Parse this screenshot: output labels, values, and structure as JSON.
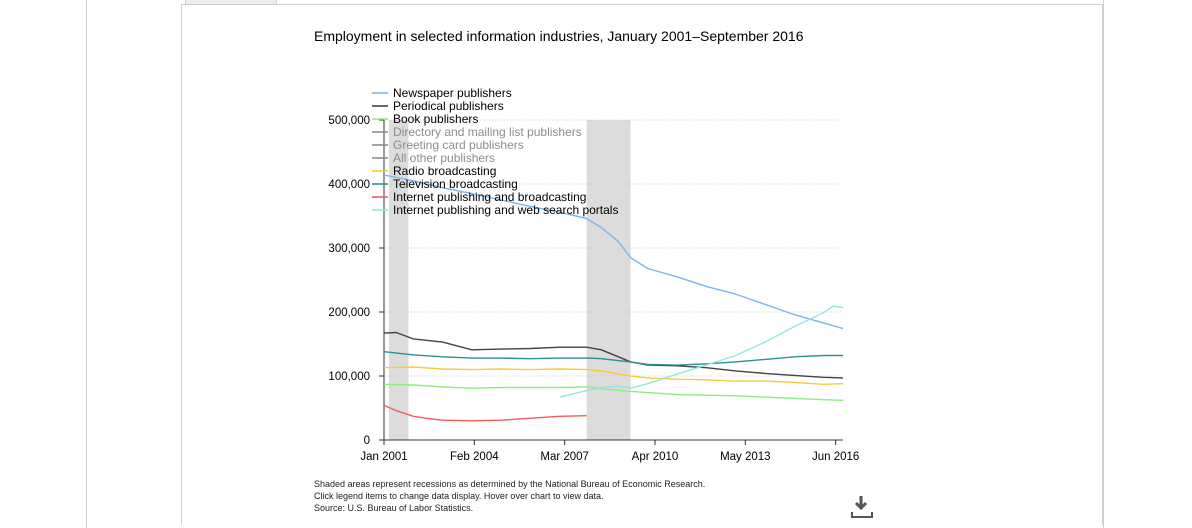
{
  "page": {
    "title": "Employment in selected information industries, January 2001–September 2016",
    "notes": [
      "Shaded areas represent recessions as determined by the National Bureau of Economic Research.",
      "Click legend items to change data display. Hover over chart to view data.",
      "Source: U.S. Bureau of Labor Statistics."
    ],
    "download_icon": "download-icon"
  },
  "chart_data": {
    "type": "line",
    "title": "Employment in selected information industries, January 2001–September 2016",
    "xlabel": "",
    "ylabel": "",
    "x_tick_labels": [
      "Jan 2001",
      "Feb 2004",
      "Mar 2007",
      "Apr 2010",
      "May 2013",
      "Jun 2016"
    ],
    "x_ticks": [
      "2001-01",
      "2004-02",
      "2007-03",
      "2010-04",
      "2013-05",
      "2016-06"
    ],
    "xlim": [
      "2001-01",
      "2016-09"
    ],
    "y_ticks": [
      0,
      100000,
      200000,
      300000,
      400000,
      500000
    ],
    "y_tick_labels": [
      "0",
      "100,000",
      "200,000",
      "300,000",
      "400,000",
      "500,000"
    ],
    "ylim": [
      0,
      500000
    ],
    "grid": "horizontal dotted",
    "legend_position": "top-left",
    "recessions": [
      [
        "2001-03",
        "2001-11"
      ],
      [
        "2007-12",
        "2009-06"
      ]
    ],
    "series": [
      {
        "name": "Newspaper publishers",
        "color": "#7cb5ec",
        "visible": true,
        "points": [
          [
            "2001-01",
            414000
          ],
          [
            "2002-01",
            405000
          ],
          [
            "2003-01",
            394000
          ],
          [
            "2004-01",
            385000
          ],
          [
            "2005-01",
            375000
          ],
          [
            "2006-01",
            365000
          ],
          [
            "2007-01",
            356000
          ],
          [
            "2007-12",
            346000
          ],
          [
            "2008-06",
            332000
          ],
          [
            "2009-01",
            310000
          ],
          [
            "2009-06",
            285000
          ],
          [
            "2010-01",
            268000
          ],
          [
            "2011-01",
            255000
          ],
          [
            "2012-01",
            240000
          ],
          [
            "2013-01",
            228000
          ],
          [
            "2014-01",
            212000
          ],
          [
            "2015-01",
            196000
          ],
          [
            "2016-01",
            183000
          ],
          [
            "2016-09",
            174000
          ]
        ]
      },
      {
        "name": "Periodical publishers",
        "color": "#434348",
        "visible": true,
        "points": [
          [
            "2001-01",
            167000
          ],
          [
            "2001-06",
            168000
          ],
          [
            "2002-01",
            158000
          ],
          [
            "2003-01",
            153000
          ],
          [
            "2003-06",
            148000
          ],
          [
            "2004-01",
            141000
          ],
          [
            "2005-01",
            142000
          ],
          [
            "2006-01",
            143000
          ],
          [
            "2007-01",
            145000
          ],
          [
            "2007-12",
            145000
          ],
          [
            "2008-06",
            141000
          ],
          [
            "2009-01",
            130000
          ],
          [
            "2009-06",
            122000
          ],
          [
            "2010-01",
            117000
          ],
          [
            "2011-01",
            116000
          ],
          [
            "2012-01",
            113000
          ],
          [
            "2013-01",
            108000
          ],
          [
            "2014-01",
            104000
          ],
          [
            "2015-01",
            101000
          ],
          [
            "2016-01",
            98000
          ],
          [
            "2016-09",
            97000
          ]
        ]
      },
      {
        "name": "Book publishers",
        "color": "#90ed7d",
        "visible": true,
        "points": [
          [
            "2001-01",
            87000
          ],
          [
            "2002-01",
            86000
          ],
          [
            "2003-01",
            83000
          ],
          [
            "2004-01",
            81000
          ],
          [
            "2005-01",
            82000
          ],
          [
            "2006-01",
            82000
          ],
          [
            "2007-01",
            82000
          ],
          [
            "2008-01",
            83000
          ],
          [
            "2008-06",
            80000
          ],
          [
            "2009-06",
            76000
          ],
          [
            "2010-01",
            74000
          ],
          [
            "2011-01",
            71000
          ],
          [
            "2012-01",
            70000
          ],
          [
            "2013-01",
            69000
          ],
          [
            "2014-01",
            67000
          ],
          [
            "2015-01",
            65000
          ],
          [
            "2016-01",
            63000
          ],
          [
            "2016-09",
            62000
          ]
        ]
      },
      {
        "name": "Directory and mailing list publishers",
        "color": "#8c8c8c",
        "visible": false,
        "points": []
      },
      {
        "name": "Greeting card publishers",
        "color": "#8c8c8c",
        "visible": false,
        "points": []
      },
      {
        "name": "All other publishers",
        "color": "#8c8c8c",
        "visible": false,
        "points": []
      },
      {
        "name": "Radio broadcasting",
        "color": "#f7cb3b",
        "visible": true,
        "points": [
          [
            "2001-01",
            113000
          ],
          [
            "2002-01",
            114000
          ],
          [
            "2003-01",
            111000
          ],
          [
            "2004-01",
            110000
          ],
          [
            "2005-01",
            111000
          ],
          [
            "2006-01",
            110000
          ],
          [
            "2007-01",
            111000
          ],
          [
            "2008-01",
            110000
          ],
          [
            "2008-06",
            108000
          ],
          [
            "2009-06",
            100000
          ],
          [
            "2010-01",
            97000
          ],
          [
            "2011-01",
            95000
          ],
          [
            "2012-01",
            94000
          ],
          [
            "2013-01",
            92000
          ],
          [
            "2014-01",
            92000
          ],
          [
            "2015-01",
            90000
          ],
          [
            "2016-01",
            87000
          ],
          [
            "2016-09",
            88000
          ]
        ]
      },
      {
        "name": "Television broadcasting",
        "color": "#2b908f",
        "visible": true,
        "points": [
          [
            "2001-01",
            138000
          ],
          [
            "2002-01",
            133000
          ],
          [
            "2003-01",
            130000
          ],
          [
            "2004-01",
            128000
          ],
          [
            "2005-01",
            128000
          ],
          [
            "2006-01",
            127000
          ],
          [
            "2007-01",
            128000
          ],
          [
            "2008-01",
            128000
          ],
          [
            "2008-06",
            127000
          ],
          [
            "2009-06",
            122000
          ],
          [
            "2010-01",
            118000
          ],
          [
            "2011-01",
            117000
          ],
          [
            "2012-01",
            119000
          ],
          [
            "2013-01",
            122000
          ],
          [
            "2014-01",
            126000
          ],
          [
            "2015-01",
            130000
          ],
          [
            "2016-01",
            132000
          ],
          [
            "2016-09",
            132000
          ]
        ]
      },
      {
        "name": "Internet publishing and broadcasting",
        "color": "#f45b5b",
        "visible": true,
        "points": [
          [
            "2001-01",
            54000
          ],
          [
            "2001-06",
            46000
          ],
          [
            "2002-01",
            37000
          ],
          [
            "2002-06",
            34000
          ],
          [
            "2003-01",
            31000
          ],
          [
            "2004-01",
            30000
          ],
          [
            "2005-01",
            31000
          ],
          [
            "2006-01",
            34000
          ],
          [
            "2007-01",
            37000
          ],
          [
            "2007-12",
            38000
          ]
        ]
      },
      {
        "name": "Internet publishing and web search portals",
        "color": "#91e8e1",
        "visible": true,
        "points": [
          [
            "2007-01",
            67000
          ],
          [
            "2008-01",
            78000
          ],
          [
            "2008-06",
            82000
          ],
          [
            "2009-01",
            84000
          ],
          [
            "2009-06",
            81000
          ],
          [
            "2010-01",
            88000
          ],
          [
            "2011-01",
            103000
          ],
          [
            "2012-01",
            117000
          ],
          [
            "2013-01",
            132000
          ],
          [
            "2014-01",
            153000
          ],
          [
            "2015-01",
            177000
          ],
          [
            "2016-01",
            199000
          ],
          [
            "2016-05",
            209000
          ],
          [
            "2016-09",
            207000
          ]
        ]
      }
    ]
  }
}
